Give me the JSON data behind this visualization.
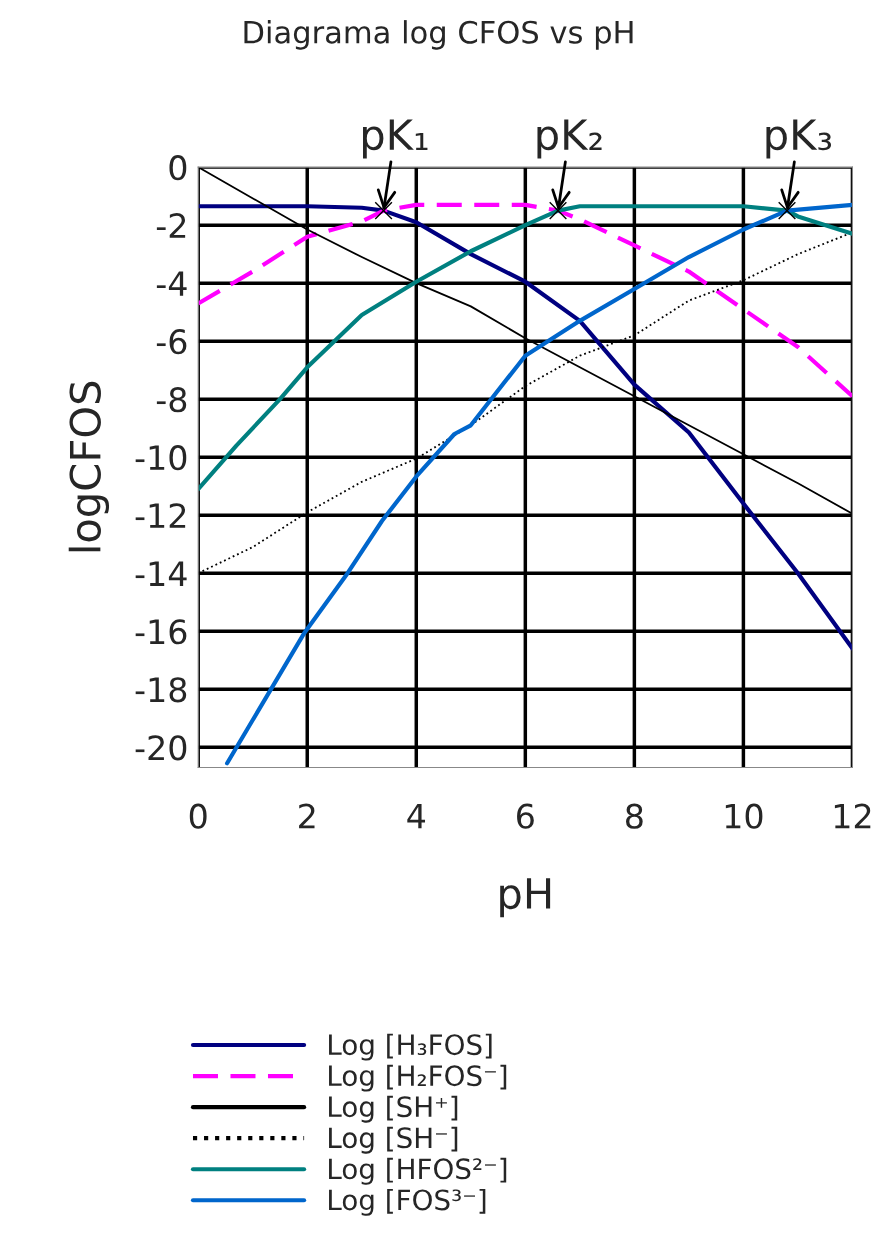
{
  "chart_data": {
    "type": "line",
    "title": "Diagrama log CFOS vs pH",
    "xlabel": "pH",
    "ylabel": "logCFOS",
    "xlim": [
      0,
      12
    ],
    "xticks": [
      0,
      2,
      4,
      6,
      8,
      10,
      12
    ],
    "ylim": [
      -20.7,
      0
    ],
    "yticks": [
      0,
      -2,
      -4,
      -6,
      -8,
      -10,
      -12,
      -14,
      -16,
      -18,
      -20
    ],
    "grid": true,
    "legend": "bottom",
    "series": [
      {
        "name": "Log [H₃FOS]",
        "color": "#000080",
        "line_style": "solid",
        "x": [
          0,
          2,
          3,
          3.4,
          4,
          5,
          6,
          7,
          8,
          9,
          10,
          11,
          12
        ],
        "values": [
          -1.35,
          -1.35,
          -1.4,
          -1.5,
          -1.9,
          -3.0,
          -3.95,
          -5.3,
          -7.5,
          -9.15,
          -11.6,
          -14.0,
          -16.6
        ]
      },
      {
        "name": "Log [H₂FOS⁻]",
        "color": "#ff00ff",
        "line_style": "dashed",
        "x": [
          0,
          1,
          2,
          3,
          3.4,
          4,
          5,
          6,
          6.6,
          7,
          8,
          9,
          10,
          11,
          12
        ],
        "values": [
          -4.7,
          -3.6,
          -2.4,
          -1.87,
          -1.5,
          -1.3,
          -1.3,
          -1.3,
          -1.5,
          -1.8,
          -2.7,
          -3.6,
          -4.9,
          -6.2,
          -7.9
        ]
      },
      {
        "name": "Log [SH⁺]",
        "color": "#000000",
        "line_style": "solid",
        "x": [
          0,
          2,
          3,
          4,
          5,
          6,
          7,
          8,
          9,
          10,
          11,
          12
        ],
        "values": [
          0,
          -2.15,
          -3.1,
          -4.0,
          -4.8,
          -5.9,
          -6.9,
          -7.9,
          -8.9,
          -9.9,
          -10.9,
          -11.95
        ]
      },
      {
        "name": "Log [SH⁻]",
        "color": "#000000",
        "line_style": "dotted",
        "x": [
          0,
          1,
          2,
          3,
          4,
          5,
          6,
          7,
          8,
          9,
          10,
          11,
          12
        ],
        "values": [
          -14.0,
          -13.1,
          -11.9,
          -10.85,
          -10.05,
          -8.9,
          -7.55,
          -6.5,
          -5.8,
          -4.6,
          -3.9,
          -3.0,
          -2.25
        ]
      },
      {
        "name": "Log [HFOS²⁻]",
        "color": "#008080",
        "line_style": "solid",
        "x": [
          0,
          0.7,
          1.5,
          2,
          3,
          4,
          5,
          6,
          6.6,
          7,
          8,
          9,
          10,
          10.8,
          11,
          12
        ],
        "values": [
          -11.1,
          -9.6,
          -8.0,
          -6.9,
          -5.1,
          -3.95,
          -2.9,
          -2.0,
          -1.5,
          -1.35,
          -1.35,
          -1.35,
          -1.35,
          -1.5,
          -1.7,
          -2.3
        ]
      },
      {
        "name": "Log [FOS³⁻]",
        "color": "#0066cc",
        "line_style": "solid",
        "x": [
          0.53,
          1.95,
          2.74,
          3.37,
          4.03,
          4.7,
          5,
          6,
          7,
          8,
          9,
          10,
          10.8,
          12
        ],
        "values": [
          -20.55,
          -16.05,
          -14.0,
          -12.2,
          -10.6,
          -9.2,
          -8.9,
          -6.5,
          -5.3,
          -4.2,
          -3.1,
          -2.15,
          -1.5,
          -1.3
        ]
      }
    ],
    "annotations": [
      {
        "text": "pK₁",
        "x": 3.4,
        "y": -1.5
      },
      {
        "text": "pK₂",
        "x": 6.6,
        "y": -1.5
      },
      {
        "text": "pK₃",
        "x": 10.8,
        "y": -1.5
      }
    ]
  }
}
